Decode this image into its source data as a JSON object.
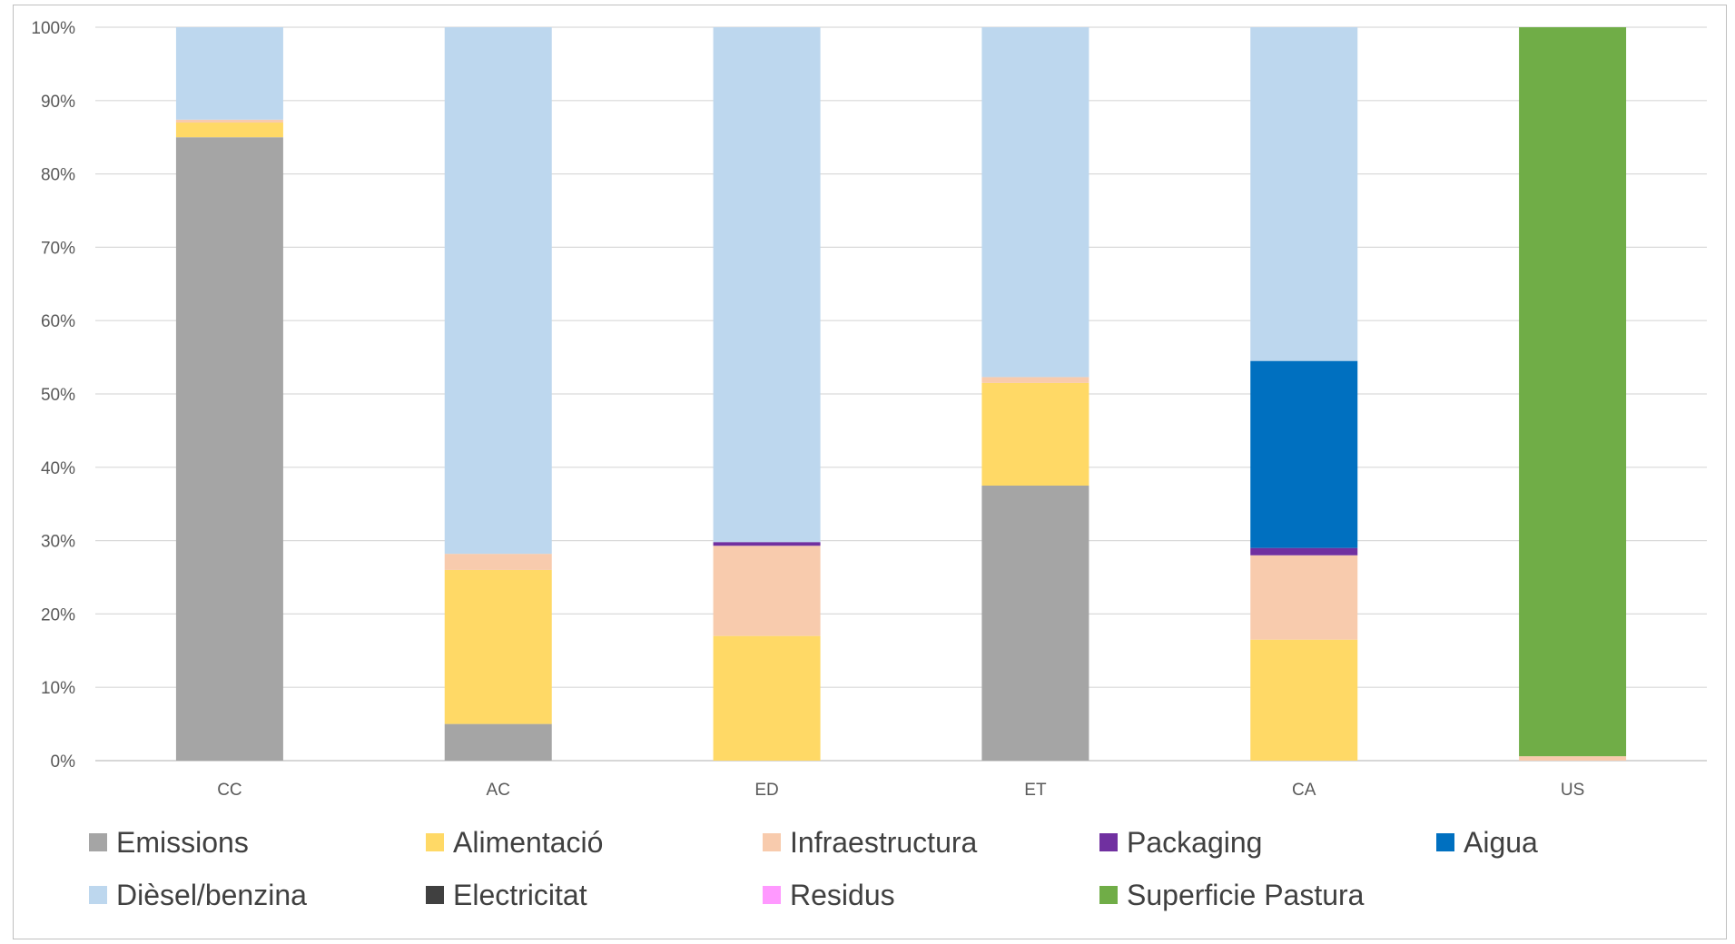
{
  "chart_data": {
    "type": "bar",
    "stacked": true,
    "percent": true,
    "title": "",
    "xlabel": "",
    "ylabel": "",
    "ylim": [
      0,
      100
    ],
    "y_ticks": [
      "0%",
      "10%",
      "20%",
      "30%",
      "40%",
      "50%",
      "60%",
      "70%",
      "80%",
      "90%",
      "100%"
    ],
    "grid": true,
    "legend_position": "bottom",
    "categories": [
      "CC",
      "AC",
      "ED",
      "ET",
      "CA",
      "US"
    ],
    "series": [
      {
        "name": "Emissions",
        "color": "#a5a5a5",
        "values": [
          85.0,
          5.0,
          0.0,
          37.5,
          0.0,
          0.0
        ]
      },
      {
        "name": "Alimentació",
        "color": "#ffd966",
        "values": [
          2.0,
          21.0,
          17.0,
          14.0,
          16.5,
          0.0
        ]
      },
      {
        "name": "Infraestructura",
        "color": "#f8cbad",
        "values": [
          0.4,
          2.2,
          12.3,
          0.8,
          11.5,
          0.6
        ]
      },
      {
        "name": "Packaging",
        "color": "#7030a0",
        "values": [
          0.0,
          0.0,
          0.5,
          0.0,
          1.0,
          0.0
        ]
      },
      {
        "name": "Aigua",
        "color": "#0070c0",
        "values": [
          0.0,
          0.0,
          0.0,
          0.0,
          25.5,
          0.0
        ]
      },
      {
        "name": "Dièsel/benzina",
        "color": "#bdd7ee",
        "values": [
          12.6,
          71.8,
          70.2,
          47.7,
          45.5,
          0.0
        ]
      },
      {
        "name": "Electricitat",
        "color": "#404040",
        "values": [
          0.0,
          0.0,
          0.0,
          0.0,
          0.0,
          0.0
        ]
      },
      {
        "name": "Residus",
        "color": "#ff99ff",
        "values": [
          0.0,
          0.0,
          0.0,
          0.0,
          0.0,
          0.0
        ]
      },
      {
        "name": "Superficie Pastura",
        "color": "#70ad47",
        "values": [
          0.0,
          0.0,
          0.0,
          0.0,
          0.0,
          99.4
        ]
      }
    ]
  }
}
